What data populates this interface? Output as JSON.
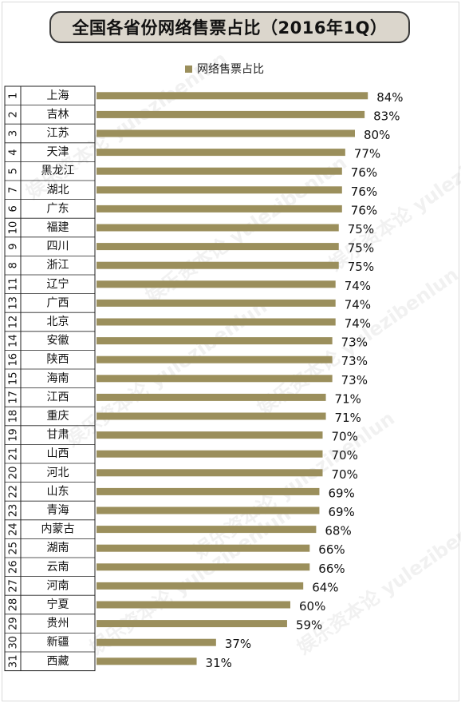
{
  "chart_data": {
    "type": "bar",
    "orientation": "horizontal",
    "title": "全国各省份网络售票占比（2016年1Q）",
    "legend": "网络售票占比",
    "legend_position": "top",
    "bar_color": "#9b8f5c",
    "value_unit": "%",
    "xlim": [
      0,
      100
    ],
    "grid": false,
    "rows": [
      {
        "rank": "1",
        "category": "上海",
        "value": 84
      },
      {
        "rank": "2",
        "category": "吉林",
        "value": 83
      },
      {
        "rank": "3",
        "category": "江苏",
        "value": 80
      },
      {
        "rank": "4",
        "category": "天津",
        "value": 77
      },
      {
        "rank": "5",
        "category": "黑龙江",
        "value": 76
      },
      {
        "rank": "7",
        "category": "湖北",
        "value": 76
      },
      {
        "rank": "6",
        "category": "广东",
        "value": 76
      },
      {
        "rank": "10",
        "category": "福建",
        "value": 75
      },
      {
        "rank": "9",
        "category": "四川",
        "value": 75
      },
      {
        "rank": "8",
        "category": "浙江",
        "value": 75
      },
      {
        "rank": "11",
        "category": "辽宁",
        "value": 74
      },
      {
        "rank": "13",
        "category": "广西",
        "value": 74
      },
      {
        "rank": "12",
        "category": "北京",
        "value": 74
      },
      {
        "rank": "14",
        "category": "安徽",
        "value": 73
      },
      {
        "rank": "16",
        "category": "陕西",
        "value": 73
      },
      {
        "rank": "15",
        "category": "海南",
        "value": 73
      },
      {
        "rank": "17",
        "category": "江西",
        "value": 71
      },
      {
        "rank": "18",
        "category": "重庆",
        "value": 71
      },
      {
        "rank": "19",
        "category": "甘肃",
        "value": 70
      },
      {
        "rank": "21",
        "category": "山西",
        "value": 70
      },
      {
        "rank": "20",
        "category": "河北",
        "value": 70
      },
      {
        "rank": "22",
        "category": "山东",
        "value": 69
      },
      {
        "rank": "23",
        "category": "青海",
        "value": 69
      },
      {
        "rank": "24",
        "category": "内蒙古",
        "value": 68
      },
      {
        "rank": "25",
        "category": "湖南",
        "value": 66
      },
      {
        "rank": "26",
        "category": "云南",
        "value": 66
      },
      {
        "rank": "27",
        "category": "河南",
        "value": 64
      },
      {
        "rank": "28",
        "category": "宁夏",
        "value": 60
      },
      {
        "rank": "29",
        "category": "贵州",
        "value": 59
      },
      {
        "rank": "30",
        "category": "新疆",
        "value": 37
      },
      {
        "rank": "31",
        "category": "西藏",
        "value": 31
      }
    ]
  },
  "watermark": "娱乐资本论 yulezibenlun"
}
